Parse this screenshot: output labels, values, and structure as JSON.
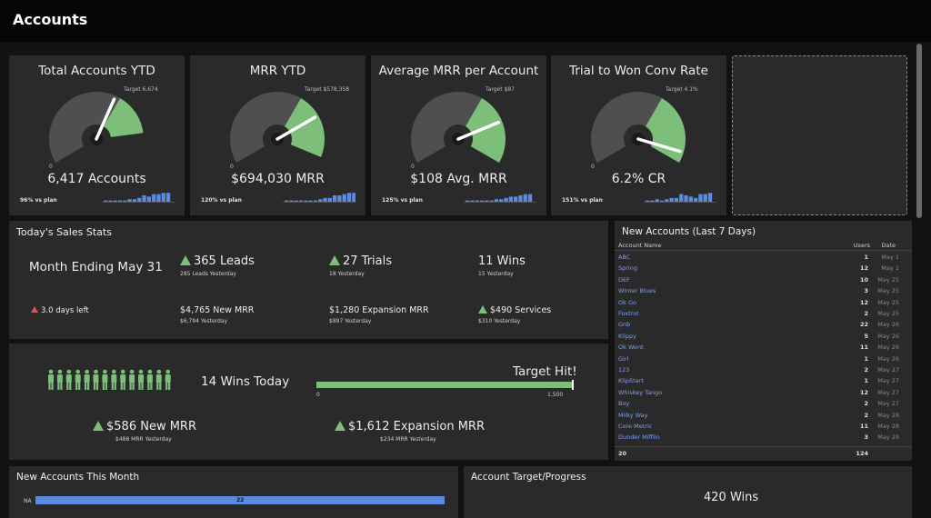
{
  "header": {
    "title": "Accounts"
  },
  "kpis": [
    {
      "title": "Total Accounts YTD",
      "value": "6,417 Accounts",
      "plan": "96% vs plan",
      "target": "Target 6,674",
      "zero": "0",
      "gauge_fraction": 0.96,
      "target_fraction": 1.0
    },
    {
      "title": "MRR YTD",
      "value": "$694,030 MRR",
      "plan": "120% vs plan",
      "target": "Target $578,358",
      "zero": "0",
      "gauge_fraction": 1.2,
      "target_fraction": 1.0
    },
    {
      "title": "Average MRR per Account",
      "value": "$108 Avg. MRR",
      "plan": "125% vs plan",
      "target": "Target $87",
      "zero": "0",
      "gauge_fraction": 1.25,
      "target_fraction": 1.0
    },
    {
      "title": "Trial to Won Conv Rate",
      "value": "6.2% CR",
      "plan": "151% vs plan",
      "target": "Target 4.1%",
      "zero": "0",
      "gauge_fraction": 1.51,
      "target_fraction": 1.0
    }
  ],
  "sales": {
    "title": "Today's Sales Stats",
    "month": "Month Ending May 31",
    "days_left": "3.0 days left",
    "leads": "365 Leads",
    "leads_sub": "285 Leads Yesterday",
    "trials": "27 Trials",
    "trials_sub": "18 Yesterday",
    "wins": "11 Wins",
    "wins_sub": "15 Yesterday",
    "new_mrr": "$4,765 New MRR",
    "new_mrr_sub": "$6,794 Yesterday",
    "exp_mrr": "$1,280 Expansion MRR",
    "exp_mrr_sub": "$897 Yesterday",
    "services": "$490 Services",
    "services_sub": "$310 Yesterday"
  },
  "wins_panel": {
    "wins_today": "14 Wins Today",
    "people_count": 14,
    "target_hit": "Target Hit!",
    "bar_min": "0",
    "bar_max": "1,500",
    "bar_fraction": 1.0,
    "new_mrr": "$586 New MRR",
    "new_mrr_sub": "$488 MRR Yesterday",
    "exp_mrr": "$1,612 Expansion MRR",
    "exp_mrr_sub": "$234 MRR Yesterday"
  },
  "new_accounts": {
    "title": "New Accounts (Last 7 Days)",
    "col_name": "Account Name",
    "col_users": "Users",
    "col_date": "Date",
    "rows": [
      {
        "name": "ABC",
        "users": "1",
        "date": "May 1"
      },
      {
        "name": "Spring",
        "users": "12",
        "date": "May 1"
      },
      {
        "name": "DEF",
        "users": "10",
        "date": "May 25"
      },
      {
        "name": "Winter Blues",
        "users": "3",
        "date": "May 25"
      },
      {
        "name": "Ok Go",
        "users": "12",
        "date": "May 25"
      },
      {
        "name": "Foxtrot",
        "users": "2",
        "date": "May 25"
      },
      {
        "name": "Gnb",
        "users": "22",
        "date": "May 26"
      },
      {
        "name": "Klippy",
        "users": "5",
        "date": "May 26"
      },
      {
        "name": "Ok Went",
        "users": "11",
        "date": "May 26"
      },
      {
        "name": "Girl",
        "users": "1",
        "date": "May 26"
      },
      {
        "name": "123",
        "users": "2",
        "date": "May 27"
      },
      {
        "name": "KlipStart",
        "users": "1",
        "date": "May 27"
      },
      {
        "name": "Whiskey Tango",
        "users": "12",
        "date": "May 27"
      },
      {
        "name": "Boy",
        "users": "2",
        "date": "May 27"
      },
      {
        "name": "Milky Way",
        "users": "2",
        "date": "May 28"
      },
      {
        "name": "Core Metric",
        "users": "11",
        "date": "May 28"
      },
      {
        "name": "Dunder Mifflin",
        "users": "3",
        "date": "May 29"
      }
    ],
    "total_count": "20",
    "total_users": "124"
  },
  "month_panel": {
    "title": "New Accounts This Month",
    "row_label": "NA",
    "bar_value": "22"
  },
  "target_panel": {
    "title": "Account Target/Progress",
    "value": "420 Wins"
  },
  "colors": {
    "green": "#7dbf7a",
    "gauge_grey": "#4f4f4f",
    "blue": "#5b8ae0",
    "panel": "#2a2a2a"
  },
  "icons": {
    "up": "triangle-up-icon",
    "warn": "warning-icon",
    "person": "person-icon"
  }
}
